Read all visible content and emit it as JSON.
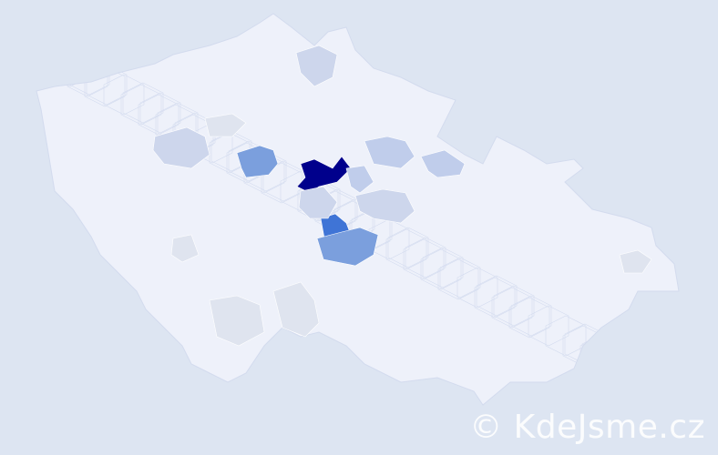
{
  "watermark": "© KdeJsme.cz",
  "colors": {
    "background": "#dde5f2",
    "base_fill": "#eef1fa",
    "border": "#d3dbee",
    "level_1": "#dfe4ef",
    "level_2": "#cdd6ec",
    "level_3": "#c0cdeb",
    "level_4": "#7b9fdd",
    "level_5": "#3f74d6",
    "level_6": "#00008c"
  },
  "regions": [
    {
      "level": 6
    },
    {
      "level": 5
    },
    {
      "level": 4
    },
    {
      "level": 4
    },
    {
      "level": 3
    },
    {
      "level": 3
    },
    {
      "level": 3
    },
    {
      "level": 2
    },
    {
      "level": 2
    },
    {
      "level": 2
    },
    {
      "level": 1
    },
    {
      "level": 1
    },
    {
      "level": 1
    },
    {
      "level": 1
    },
    {
      "level": 1
    },
    {
      "level": 2
    }
  ]
}
